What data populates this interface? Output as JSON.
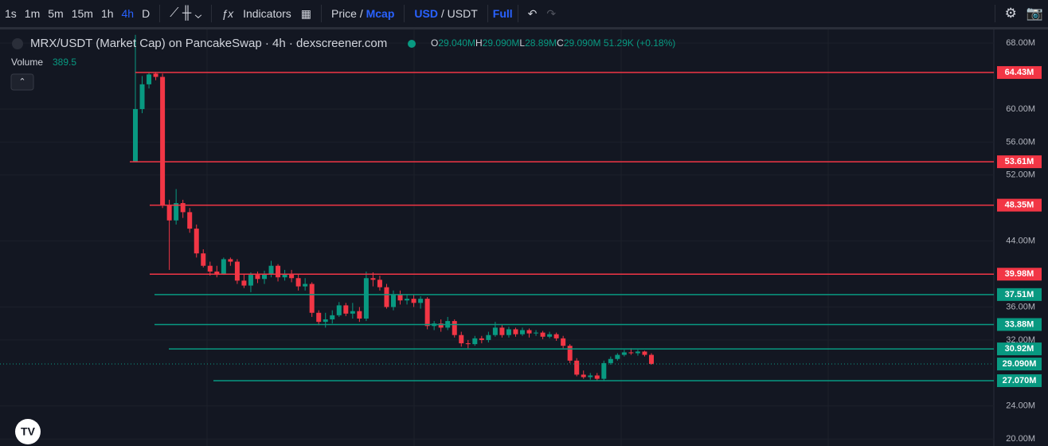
{
  "toolbar": {
    "intervals": [
      "1s",
      "1m",
      "5m",
      "15m",
      "1h",
      "4h",
      "D"
    ],
    "active_interval": "4h",
    "indicators": "Indicators",
    "price": "Price",
    "mcap": "Mcap",
    "usd": "USD",
    "usdt": "USDT",
    "full": "Full"
  },
  "legend": {
    "title": "MRX/USDT (Market Cap) on PancakeSwap · 4h · dexscreener.com",
    "o": "29.040M",
    "h": "29.090M",
    "l": "28.89M",
    "c": "29.090M",
    "change": "51.29K (+0.18%)",
    "volume_label": "Volume",
    "volume": "389.5"
  },
  "chart_data": {
    "type": "candlestick",
    "up_color": "#089981",
    "down_color": "#f23645",
    "open": [
      53.6,
      60,
      63,
      64.3,
      63.9,
      48.3,
      46.5,
      48.6,
      47.5,
      45.5,
      42.5,
      41,
      40.3,
      40,
      41.8,
      41.5,
      39.2,
      38.6,
      39.9,
      39.4,
      40,
      41,
      39.6,
      40,
      39.5,
      38.5,
      38.8,
      35.3,
      34.2,
      34.5,
      35,
      36.2,
      35.2,
      35.5,
      34.6,
      39.5,
      39.3,
      38.4,
      36,
      37.5,
      36.8,
      37,
      36.5,
      37,
      33.7,
      34,
      33.5,
      34.3,
      32.6,
      31.6,
      31.5,
      32.2,
      32,
      32.6,
      33.5,
      32.6,
      33.3,
      32.7,
      33.2,
      32.8,
      32.9,
      32.4,
      32.7,
      32.2,
      31.3,
      29.5,
      27.8,
      27.5,
      27.7,
      27.3,
      29.2,
      29.7,
      30.2,
      30.5,
      30.4,
      30.6,
      30.2
    ],
    "high": [
      69,
      64,
      64.4,
      64.5,
      64.3,
      49,
      50.3,
      49,
      48,
      46,
      43,
      41.5,
      41,
      42,
      42,
      41.8,
      40,
      40.2,
      40.3,
      40.4,
      41.6,
      41.2,
      40.5,
      40.5,
      40,
      39.5,
      39,
      35.6,
      35.3,
      35.6,
      36.6,
      36.5,
      36.5,
      36,
      40.3,
      40.2,
      39.8,
      38.8,
      38,
      38,
      37.5,
      37.5,
      37.3,
      37.2,
      34.3,
      34.5,
      34.8,
      34.5,
      33,
      32,
      32.5,
      32.5,
      33,
      34.2,
      33.8,
      33.6,
      33.5,
      33.5,
      33.4,
      33.2,
      33.1,
      33,
      32.9,
      32.5,
      31.5,
      29.8,
      28.3,
      28,
      28,
      29.5,
      30,
      30.4,
      30.8,
      31,
      30.8,
      30.7,
      30.4
    ],
    "low": [
      53.6,
      59.5,
      62.5,
      63.5,
      48,
      40.5,
      46,
      46.8,
      45,
      42,
      40.8,
      39.8,
      39.6,
      39.9,
      41,
      38.8,
      38.3,
      37.8,
      38.9,
      38.8,
      39.6,
      39.1,
      39.2,
      39,
      38,
      38,
      34.8,
      33.8,
      33.5,
      34,
      34.8,
      34.9,
      34.6,
      34.2,
      34.3,
      38.5,
      38,
      35.8,
      35.6,
      36.3,
      36.3,
      36,
      35.8,
      33.3,
      33.2,
      33,
      33.2,
      32.3,
      31.2,
      31,
      31.3,
      31.6,
      31.7,
      32.4,
      32.3,
      32.3,
      32.4,
      32.5,
      32.3,
      32.5,
      32.1,
      32.2,
      31.9,
      31,
      29.2,
      27.6,
      27.3,
      27.2,
      27.1,
      27.1,
      29,
      29.5,
      30,
      30.2,
      30.1,
      30,
      29
    ],
    "close": [
      60,
      63,
      64.2,
      63.9,
      48.3,
      46.5,
      48.6,
      47.5,
      45.5,
      42.5,
      41,
      40.3,
      39.9,
      41.8,
      41.5,
      39.2,
      38.6,
      39.9,
      39.4,
      40,
      41,
      39.6,
      40,
      39.5,
      38.5,
      38.8,
      35.3,
      34.2,
      34.5,
      35,
      36.2,
      35.2,
      35.5,
      34.6,
      39.5,
      39.3,
      38.4,
      36,
      37.5,
      36.8,
      37,
      36.5,
      37,
      33.7,
      34,
      33.5,
      34.3,
      32.6,
      31.6,
      31.5,
      32.2,
      32,
      32.6,
      33.5,
      32.6,
      33.3,
      32.7,
      33.2,
      32.8,
      32.9,
      32.4,
      32.7,
      32.2,
      31.3,
      29.5,
      27.8,
      27.5,
      27.7,
      27.3,
      29.2,
      29.7,
      30.2,
      30.5,
      30.4,
      30.6,
      30.2,
      29.1
    ],
    "ylim": [
      19.15,
      69.65
    ],
    "yticks": [
      {
        "value": 68,
        "label": "68.00M"
      },
      {
        "value": 60,
        "label": "60.00M"
      },
      {
        "value": 56,
        "label": "56.00M"
      },
      {
        "value": 52,
        "label": "52.00M"
      },
      {
        "value": 44,
        "label": "44.00M"
      },
      {
        "value": 36,
        "label": "36.00M"
      },
      {
        "value": 32,
        "label": "32.00M"
      },
      {
        "value": 24,
        "label": "24.00M"
      },
      {
        "value": 20,
        "label": "20.00M"
      }
    ],
    "levels": [
      {
        "value": 64.43,
        "label": "64.43M",
        "color": "#f23645"
      },
      {
        "value": 53.61,
        "label": "53.61M",
        "color": "#f23645"
      },
      {
        "value": 48.35,
        "label": "48.35M",
        "color": "#f23645"
      },
      {
        "value": 39.98,
        "label": "39.98M",
        "color": "#f23645"
      },
      {
        "value": 37.51,
        "label": "37.51M",
        "color": "#089981"
      },
      {
        "value": 33.88,
        "label": "33.88M",
        "color": "#089981"
      },
      {
        "value": 30.92,
        "label": "30.92M",
        "color": "#089981"
      },
      {
        "value": 27.07,
        "label": "27.070M",
        "color": "#089981"
      }
    ],
    "last_price": {
      "value": 29.09,
      "label": "29.090M",
      "color": "#089981"
    }
  }
}
